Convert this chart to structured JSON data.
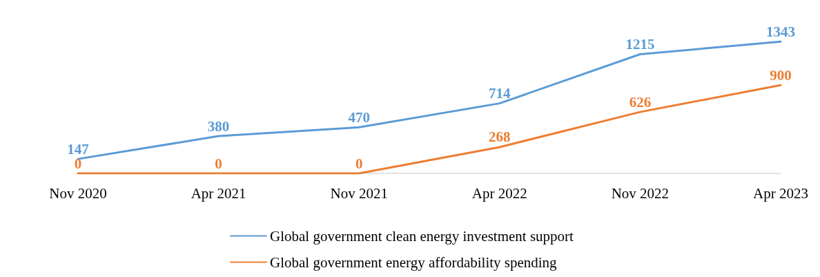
{
  "chart_data": {
    "type": "line",
    "categories": [
      "Nov 2020",
      "Apr 2021",
      "Nov 2021",
      "Apr 2022",
      "Nov 2022",
      "Apr 2023"
    ],
    "series": [
      {
        "name": "Global government clean energy investment support",
        "color": "#5b9bd5",
        "values": [
          147,
          380,
          470,
          714,
          1215,
          1343
        ]
      },
      {
        "name": "Global government energy affordability spending",
        "color": "#ed7d31",
        "values": [
          0,
          0,
          0,
          268,
          626,
          900
        ]
      }
    ],
    "data_labels": true,
    "grid": false,
    "legend": "bottom",
    "marker": "none",
    "line_style": "solid"
  }
}
